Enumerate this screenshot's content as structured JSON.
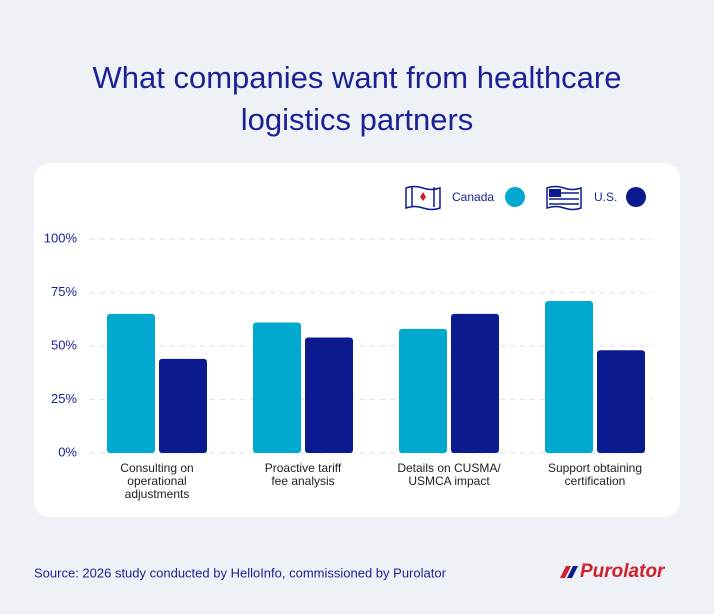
{
  "chart_data": {
    "type": "bar",
    "title": "What companies want from healthcare\nlogistics partners",
    "categories": [
      "Consulting on\noperational\nadjustments",
      "Proactive tariff\nfee analysis",
      "Details on CUSMA/\nUSMCA impact",
      "Support obtaining\ncertification"
    ],
    "series": [
      {
        "name": "Canada",
        "color": "#00a9cd",
        "values": [
          65,
          61,
          58,
          71
        ]
      },
      {
        "name": "U.S.",
        "color": "#0b1a8e",
        "values": [
          44,
          54,
          65,
          48
        ]
      }
    ],
    "ylim": [
      0,
      100
    ],
    "yticks": [
      {
        "value": 0,
        "label": "0%"
      },
      {
        "value": 25,
        "label": "25%"
      },
      {
        "value": 50,
        "label": "50%"
      },
      {
        "value": 75,
        "label": "75%"
      },
      {
        "value": 100,
        "label": "100%"
      }
    ],
    "grid": true,
    "legend": "top-right",
    "source": "Source: 2026 study conducted by HelloInfo, commissioned by Purolator",
    "logo": "Purolator"
  }
}
